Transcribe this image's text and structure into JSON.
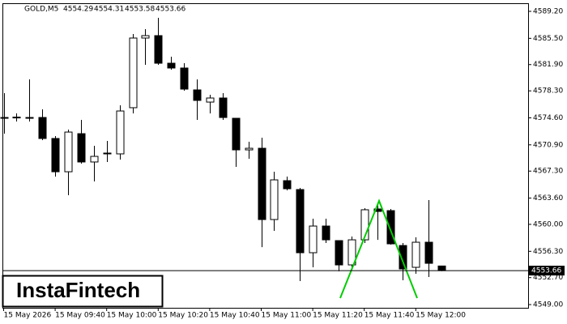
{
  "chart_data": {
    "type": "candlestick",
    "title": "GOLD,M5",
    "logo": "InstaFintech",
    "bull_color": "#ffffff",
    "bear_color": "#000000",
    "outline_color": "#000000",
    "categories": [
      "15 May 2026",
      null,
      null,
      null,
      "15 May 09:40",
      null,
      null,
      null,
      "15 May 10:00",
      null,
      null,
      null,
      "15 May 10:20",
      null,
      null,
      null,
      "15 May 10:40",
      null,
      null,
      null,
      "15 May 11:00",
      null,
      null,
      null,
      "15 May 11:20",
      null,
      null,
      null,
      "15 May 11:40",
      null,
      null,
      null,
      "15 May 12:00",
      null,
      null
    ],
    "open": [
      4574.65,
      4574.7,
      4574.65,
      4574.65,
      4571.77,
      4567.21,
      4572.43,
      4568.55,
      4569.66,
      4569.66,
      4575.99,
      4585.54,
      4585.87,
      4582.09,
      4581.43,
      4578.43,
      4576.76,
      4577.32,
      4574.54,
      4570.21,
      4570.43,
      4560.66,
      4565.99,
      4564.77,
      4556.11,
      4559.77,
      4557.77,
      4554.44,
      4557.88,
      4562.11,
      4561.88,
      4557.1,
      4554.11,
      4557.55,
      4554.29
    ],
    "high": [
      4577.98,
      4575.21,
      4579.87,
      4575.76,
      4572.1,
      4572.99,
      4574.32,
      4570.77,
      4571.43,
      4576.32,
      4586.09,
      4586.76,
      4588.31,
      4582.98,
      4582.09,
      4579.87,
      4577.76,
      4577.98,
      4574.54,
      4571.32,
      4571.88,
      4567.21,
      4566.55,
      4565.0,
      4560.77,
      4560.77,
      4557.77,
      4558.33,
      4562.22,
      4562.77,
      4562.11,
      4557.44,
      4558.22,
      4563.33,
      4554.31
    ],
    "low": [
      4572.43,
      4574.1,
      4574.1,
      4571.54,
      4566.55,
      4563.99,
      4568.32,
      4565.88,
      4568.55,
      4568.88,
      4575.21,
      4581.87,
      4581.87,
      4581.21,
      4578.32,
      4574.32,
      4575.21,
      4574.32,
      4567.88,
      4568.99,
      4556.88,
      4559.11,
      4564.66,
      4552.22,
      4554.11,
      4557.44,
      4553.55,
      4554.11,
      4557.44,
      4557.88,
      4557.22,
      4552.33,
      4553.22,
      4552.78,
      4553.58
    ],
    "close": [
      4574.65,
      4574.6,
      4574.6,
      4571.77,
      4567.21,
      4572.65,
      4568.55,
      4569.32,
      4569.77,
      4575.54,
      4585.54,
      4585.87,
      4582.09,
      4581.43,
      4578.54,
      4576.99,
      4577.32,
      4574.65,
      4570.21,
      4570.43,
      4560.66,
      4566.1,
      4564.88,
      4556.11,
      4559.77,
      4557.88,
      4554.44,
      4557.88,
      4562.0,
      4561.77,
      4557.33,
      4553.89,
      4557.55,
      4554.66,
      4553.66
    ],
    "ylim": [
      4548.56,
      4590.755
    ],
    "yticks": [
      {
        "value": 4589.2,
        "label": "4589.20"
      },
      {
        "value": 4585.5,
        "label": "4585.50"
      },
      {
        "value": 4581.9,
        "label": "4581.90"
      },
      {
        "value": 4578.3,
        "label": "4578.30"
      },
      {
        "value": 4574.6,
        "label": "4574.60"
      },
      {
        "value": 4570.9,
        "label": "4570.90"
      },
      {
        "value": 4567.3,
        "label": "4567.30"
      },
      {
        "value": 4563.6,
        "label": "4563.60"
      },
      {
        "value": 4560,
        "label": "4560.00"
      },
      {
        "value": 4556.3,
        "label": "4556.30"
      },
      {
        "value": 4552.7,
        "label": "4552.70"
      },
      {
        "value": 4549,
        "label": "4549.00"
      }
    ]
  }
}
